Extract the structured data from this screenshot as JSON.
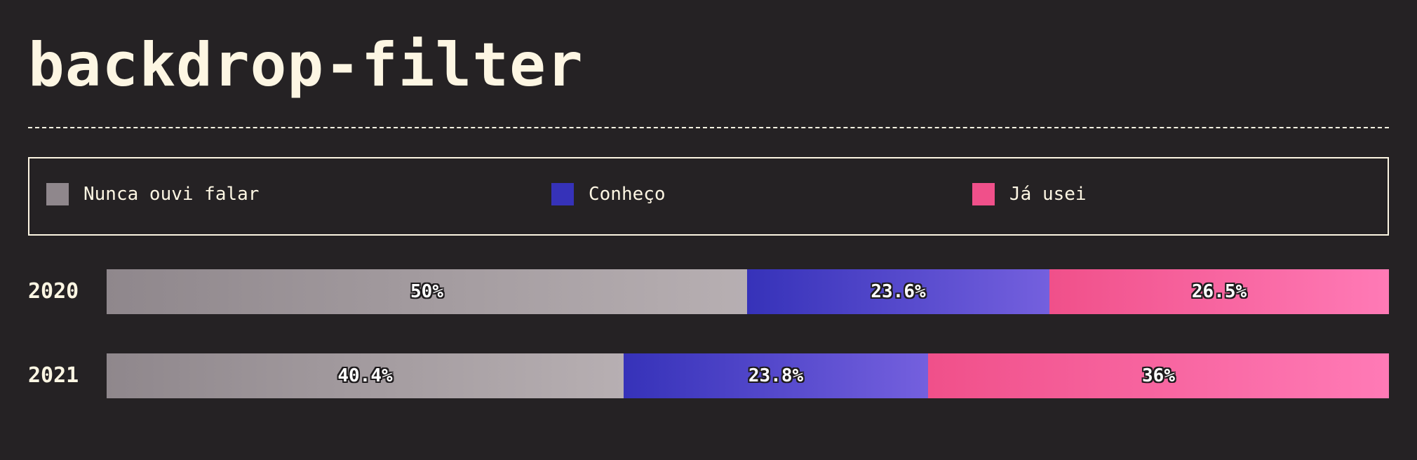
{
  "title": "backdrop-filter",
  "colors": {
    "background": "#252224",
    "text": "#fdf6e3",
    "nunca": "#8f878c",
    "conheco": "#3632b9",
    "usei": "#f0508a"
  },
  "legend": [
    {
      "key": "nunca",
      "label": "Nunca ouvi falar"
    },
    {
      "key": "conheco",
      "label": "Conheço"
    },
    {
      "key": "usei",
      "label": "Já usei"
    }
  ],
  "chart_data": {
    "type": "bar",
    "orientation": "horizontal",
    "stacked": true,
    "normalized": true,
    "title": "backdrop-filter",
    "categories": [
      "2020",
      "2021"
    ],
    "series": [
      {
        "name": "Nunca ouvi falar",
        "values": [
          50,
          40.4
        ],
        "labels": [
          "50%",
          "40.4%"
        ]
      },
      {
        "name": "Conheço",
        "values": [
          23.6,
          23.8
        ],
        "labels": [
          "23.6%",
          "23.8%"
        ]
      },
      {
        "name": "Já usei",
        "values": [
          26.5,
          36
        ],
        "labels": [
          "26.5%",
          "36%"
        ]
      }
    ],
    "xlim": [
      0,
      100
    ],
    "grid": false,
    "legend_position": "top"
  }
}
